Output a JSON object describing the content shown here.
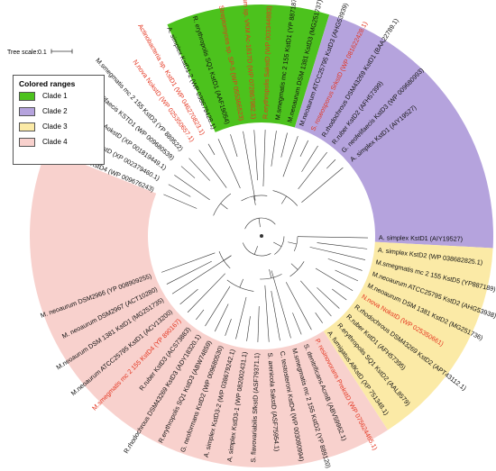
{
  "tree_scale": {
    "label": "Tree scale:",
    "value": "0.1"
  },
  "legend": {
    "title": "Colored ranges",
    "items": [
      {
        "name": "Clade 1",
        "color": "#4cc21d"
      },
      {
        "name": "Clade 2",
        "color": "#b5a3dd"
      },
      {
        "name": "Clade 3",
        "color": "#fbeaa6"
      },
      {
        "name": "Clade 4",
        "color": "#f8d1cd"
      }
    ]
  },
  "highlight_color": "#e4341f",
  "label_color": "#111111",
  "clades": [
    {
      "name": "Clade 1",
      "color": "#4cc21d",
      "start_deg": -114,
      "end_deg": -73
    },
    {
      "name": "Clade 2",
      "color": "#b5a3dd",
      "start_deg": -73,
      "end_deg": 3
    },
    {
      "name": "Clade 3",
      "color": "#fbeaa6",
      "start_deg": 3,
      "end_deg": 57
    },
    {
      "name": "Clade 4",
      "color": "#f8d1cd",
      "start_deg": 57,
      "end_deg": 202
    }
  ],
  "leaves": [
    {
      "text": "A. simplex KstD1 (AIY19527)",
      "angle": 1,
      "red": false
    },
    {
      "text": "A. simplex KstD2 (WP 038682825.1)",
      "angle": 7,
      "red": false
    },
    {
      "text": "M.smegmatis mc 2 155 KstD5 (YP887189)",
      "angle": 13,
      "red": false
    },
    {
      "text": "M.neoaurum ATCC25795 KstD2 (AHG53938)",
      "angle": 19,
      "red": false
    },
    {
      "text": "M.neoaurum DSM 1381 KstD2 (MG251736)",
      "angle": 25,
      "red": false
    },
    {
      "text": "N.nova NokstD (WP 025350661)",
      "angle": 31,
      "red": true
    },
    {
      "text": "R.rhodochrous DSM43269 KstD2 (APT43112.1)",
      "angle": 37,
      "red": false
    },
    {
      "text": "R.ruber KstD1 (AFH57395)",
      "angle": 43,
      "red": false
    },
    {
      "text": "R.erythropolis SQ1 KstD2 (AAL8579)",
      "angle": 49,
      "red": false
    },
    {
      "text": "A. fumigatus AfKstD (XP 751348.1)",
      "angle": 55,
      "red": false
    },
    {
      "text": "P. resinovorans PrekstD (WP 075624465.1)",
      "angle": 62,
      "red": true
    },
    {
      "text": "S. denitrificans AcmB (ABV59962.1)",
      "angle": 68,
      "red": false
    },
    {
      "text": "M.smegmatis mc 2 155 KstD2 (YP 889120)",
      "angle": 74,
      "red": false
    },
    {
      "text": "C. testosteroni KstD4 (WP 003080994)",
      "angle": 80,
      "red": false
    },
    {
      "text": "S. arenicola SakstD (ASF75954.1)",
      "angle": 86,
      "red": false
    },
    {
      "text": "S. flavovariabilis SfkstD (ASF79371.1)",
      "angle": 92,
      "red": false
    },
    {
      "text": "A. simplex KstD3-1 (WP 082002431.1)",
      "angle": 98,
      "red": false
    },
    {
      "text": "A. simplex KstD3-2 (WP 038679242.1)",
      "angle": 104,
      "red": false
    },
    {
      "text": "G. neoformans KstD2 (WP 009680530)",
      "angle": 110,
      "red": false
    },
    {
      "text": "R.erythropolis SQ1 KstD3 (ABW74859)",
      "angle": 116,
      "red": false
    },
    {
      "text": "R.rhodochrous DSM43269 KstD3 (ADY18320.1)",
      "angle": 122,
      "red": false
    },
    {
      "text": "R.ruber KstD3 (ACS73883)",
      "angle": 128,
      "red": false
    },
    {
      "text": "M.smegmatis mc 2 155 KstD4 (YP 890167)",
      "angle": 134,
      "red": true
    },
    {
      "text": "M.neoaurum ATCC25795 KstD1 (ACV13200)",
      "angle": 140,
      "red": false
    },
    {
      "text": "M.neoaurum DSM 1381 KstD1 (MG251735)",
      "angle": 147,
      "red": false
    },
    {
      "text": "M. neoaurum DSM2967 (ACT10280)",
      "angle": 153,
      "red": false
    },
    {
      "text": "M. neoaurum DSM2966 (YP 008909255)",
      "angle": 160,
      "red": false
    },
    {
      "text": "G. neofelifaecis KstD4 (WP 009676243)",
      "angle": 203,
      "red": false
    },
    {
      "text": "A. flavus AfkstD (XP 002379460.1)",
      "angle": 209,
      "red": false
    },
    {
      "text": "A. oryzae AokstD (XP 001819449.1)",
      "angle": 215,
      "red": false
    },
    {
      "text": "G. neofelifaecis KSTD1 (WP 009680539)",
      "angle": 221,
      "red": false
    },
    {
      "text": "M.smegmatis mc 2 155 KstD3 (YP 889522)",
      "angle": 227,
      "red": false
    },
    {
      "text": "N.nova NokstD (WP 025350657.1)",
      "angle": 234,
      "red": true
    },
    {
      "text": "Actinobacteria sp. KstD1 (WP 046270823.1)",
      "angle": 240,
      "red": true
    },
    {
      "text": "A. simplex KstD1-2 (WP 038679428.1)",
      "angle": 246,
      "red": false
    },
    {
      "text": "R. erythropolis SQ1 KstD1 (AAF19054)",
      "angle": 253,
      "red": false
    },
    {
      "text": "Streptomyces sp. SP-5 (WP 055366523)",
      "angle": 260,
      "red": true
    },
    {
      "text": "Mycobacterium sp. VKM Ac-1817D (WP 072867982.1)",
      "angle": 266,
      "red": true
    },
    {
      "text": "R.erythropolis SakstD (WP 003344883)",
      "angle": 272,
      "red": true
    },
    {
      "text": "M.smegmatis mc 2 155 KstD1 (YP 887187)",
      "angle": 278,
      "red": false
    },
    {
      "text": "M.neoaurum DSM 1381 KstD3 (MG251737)",
      "angle": 284,
      "red": false
    },
    {
      "text": "M.neoaurum ATCC25795 KstD3 (AHG53939)",
      "angle": 290,
      "red": false
    },
    {
      "text": "S. roseosporus SrkstD (WP 081622428.1)",
      "angle": 296,
      "red": true
    },
    {
      "text": "R.rhodochrous DSM43269 KstD1 (BAA22789.1)",
      "angle": 302,
      "red": false
    },
    {
      "text": "R.ruber KstD2 (AFH57399)",
      "angle": 308,
      "red": false
    },
    {
      "text": "G. neofelifaecis KstD3 (WP 009680993)",
      "angle": 314,
      "red": false
    },
    {
      "text": "A. simplex KstD1 (AIY19527)",
      "angle": 320,
      "red": false
    }
  ]
}
